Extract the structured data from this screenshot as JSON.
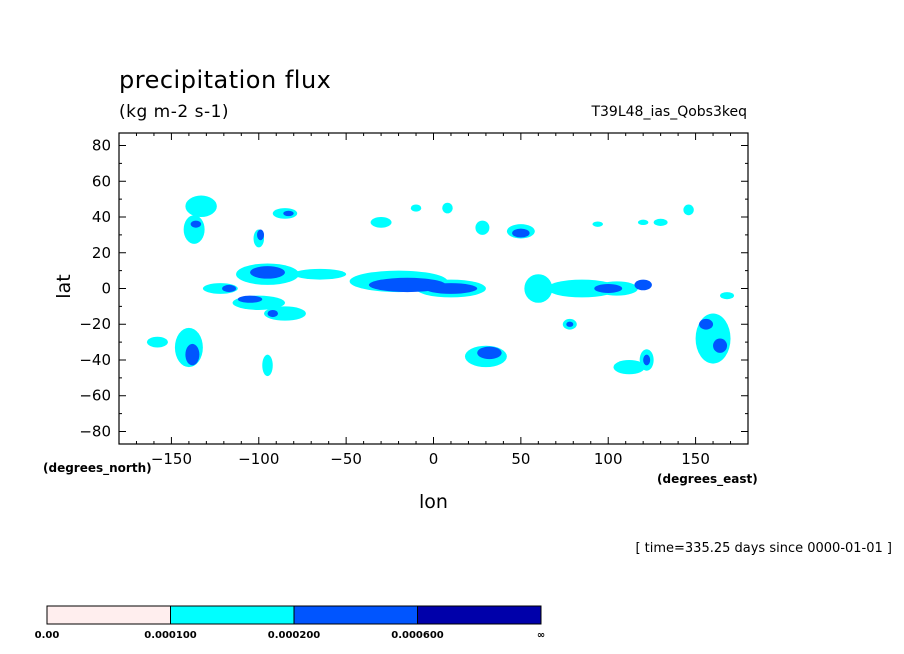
{
  "header": {
    "title": "precipitation flux",
    "units": "(kg m-2 s-1)",
    "run_name": "T39L48_ias_Qobs3keq"
  },
  "footer": {
    "time_note": "[ time=335.25 days since 0000-01-01 ]"
  },
  "colors": {
    "level1": "#ffeeee",
    "level2": "#00ffff",
    "level3": "#0055ff",
    "level4": "#0000aa",
    "frame": "#000000"
  },
  "chart_data": {
    "type": "heatmap",
    "title": "precipitation flux",
    "subtitle": "(kg m-2 s-1)",
    "xlabel": "lon",
    "ylabel": "lat",
    "x_units": "(degrees_east)",
    "y_units": "(degrees_north)",
    "xlim": [
      -180,
      180
    ],
    "ylim": [
      -87,
      87
    ],
    "x_ticks": [
      -150,
      -100,
      -50,
      0,
      50,
      100,
      150
    ],
    "x_tick_labels": [
      "−150",
      "−100",
      "−50",
      "0",
      "50",
      "100",
      "150"
    ],
    "y_ticks": [
      80,
      60,
      40,
      20,
      0,
      -20,
      -40,
      -60,
      -80
    ],
    "y_tick_labels": [
      "80",
      "60",
      "40",
      "20",
      "0",
      "−20",
      "−40",
      "−60",
      "−80"
    ],
    "colorbar": {
      "levels": [
        "0.00",
        "0.000100",
        "0.000200",
        "0.000600",
        "∞"
      ],
      "colors": [
        "#ffeeee",
        "#00ffff",
        "#0055ff",
        "#0000aa"
      ]
    },
    "contour_features": [
      {
        "lon": -133,
        "lat": 46,
        "rx": 9,
        "ry": 6,
        "level": 2
      },
      {
        "lon": -137,
        "lat": 33,
        "rx": 6,
        "ry": 8,
        "level": 2
      },
      {
        "lon": -136,
        "lat": 36,
        "rx": 3,
        "ry": 2,
        "level": 3
      },
      {
        "lon": -85,
        "lat": 42,
        "rx": 7,
        "ry": 3,
        "level": 2
      },
      {
        "lon": -83,
        "lat": 42,
        "rx": 3,
        "ry": 1.5,
        "level": 3
      },
      {
        "lon": -100,
        "lat": 28,
        "rx": 3,
        "ry": 5,
        "level": 2
      },
      {
        "lon": -99,
        "lat": 30,
        "rx": 2,
        "ry": 3,
        "level": 3
      },
      {
        "lon": -95,
        "lat": 8,
        "rx": 18,
        "ry": 6,
        "level": 2
      },
      {
        "lon": -95,
        "lat": 9,
        "rx": 10,
        "ry": 3.5,
        "level": 3
      },
      {
        "lon": -65,
        "lat": 8,
        "rx": 15,
        "ry": 3,
        "level": 2
      },
      {
        "lon": -122,
        "lat": 0,
        "rx": 10,
        "ry": 3,
        "level": 2
      },
      {
        "lon": -117,
        "lat": 0,
        "rx": 4,
        "ry": 2,
        "level": 3
      },
      {
        "lon": -100,
        "lat": -8,
        "rx": 15,
        "ry": 4,
        "level": 2
      },
      {
        "lon": -105,
        "lat": -6,
        "rx": 7,
        "ry": 2,
        "level": 3
      },
      {
        "lon": -85,
        "lat": -14,
        "rx": 12,
        "ry": 4,
        "level": 2
      },
      {
        "lon": -92,
        "lat": -14,
        "rx": 3,
        "ry": 2,
        "level": 3
      },
      {
        "lon": -140,
        "lat": -33,
        "rx": 8,
        "ry": 11,
        "level": 2
      },
      {
        "lon": -138,
        "lat": -37,
        "rx": 4,
        "ry": 6,
        "level": 3
      },
      {
        "lon": -158,
        "lat": -30,
        "rx": 6,
        "ry": 3,
        "level": 2
      },
      {
        "lon": -95,
        "lat": -43,
        "rx": 3,
        "ry": 6,
        "level": 2
      },
      {
        "lon": -20,
        "lat": 4,
        "rx": 28,
        "ry": 6,
        "level": 2
      },
      {
        "lon": -15,
        "lat": 2,
        "rx": 22,
        "ry": 4,
        "level": 3
      },
      {
        "lon": 10,
        "lat": 0,
        "rx": 20,
        "ry": 5,
        "level": 2
      },
      {
        "lon": 10,
        "lat": 0,
        "rx": 15,
        "ry": 3,
        "level": 3
      },
      {
        "lon": 30,
        "lat": -38,
        "rx": 12,
        "ry": 6,
        "level": 2
      },
      {
        "lon": 32,
        "lat": -36,
        "rx": 7,
        "ry": 3.5,
        "level": 3
      },
      {
        "lon": 50,
        "lat": 32,
        "rx": 8,
        "ry": 4,
        "level": 2
      },
      {
        "lon": 50,
        "lat": 31,
        "rx": 5,
        "ry": 2.5,
        "level": 3
      },
      {
        "lon": 28,
        "lat": 34,
        "rx": 4,
        "ry": 4,
        "level": 2
      },
      {
        "lon": -30,
        "lat": 37,
        "rx": 6,
        "ry": 3,
        "level": 2
      },
      {
        "lon": 8,
        "lat": 45,
        "rx": 3,
        "ry": 3,
        "level": 2
      },
      {
        "lon": -10,
        "lat": 45,
        "rx": 3,
        "ry": 2,
        "level": 2
      },
      {
        "lon": 60,
        "lat": 0,
        "rx": 8,
        "ry": 8,
        "level": 2
      },
      {
        "lon": 85,
        "lat": 0,
        "rx": 20,
        "ry": 5,
        "level": 2
      },
      {
        "lon": 105,
        "lat": 0,
        "rx": 12,
        "ry": 4,
        "level": 2
      },
      {
        "lon": 100,
        "lat": 0,
        "rx": 8,
        "ry": 2.5,
        "level": 3
      },
      {
        "lon": 120,
        "lat": 2,
        "rx": 5,
        "ry": 3,
        "level": 3
      },
      {
        "lon": 78,
        "lat": -20,
        "rx": 4,
        "ry": 3,
        "level": 2
      },
      {
        "lon": 78,
        "lat": -20,
        "rx": 2,
        "ry": 1.5,
        "level": 3
      },
      {
        "lon": 112,
        "lat": -44,
        "rx": 9,
        "ry": 4,
        "level": 2
      },
      {
        "lon": 122,
        "lat": -40,
        "rx": 4,
        "ry": 6,
        "level": 2
      },
      {
        "lon": 122,
        "lat": -40,
        "rx": 2,
        "ry": 3,
        "level": 3
      },
      {
        "lon": 160,
        "lat": -28,
        "rx": 10,
        "ry": 14,
        "level": 2
      },
      {
        "lon": 156,
        "lat": -20,
        "rx": 4,
        "ry": 3,
        "level": 3
      },
      {
        "lon": 164,
        "lat": -32,
        "rx": 4,
        "ry": 4,
        "level": 3
      },
      {
        "lon": 146,
        "lat": 44,
        "rx": 3,
        "ry": 3,
        "level": 2
      },
      {
        "lon": 130,
        "lat": 37,
        "rx": 4,
        "ry": 2,
        "level": 2
      },
      {
        "lon": 168,
        "lat": -4,
        "rx": 4,
        "ry": 2,
        "level": 2
      },
      {
        "lon": 94,
        "lat": 36,
        "rx": 3,
        "ry": 1.5,
        "level": 2
      },
      {
        "lon": 120,
        "lat": 37,
        "rx": 3,
        "ry": 1.5,
        "level": 2
      }
    ]
  }
}
